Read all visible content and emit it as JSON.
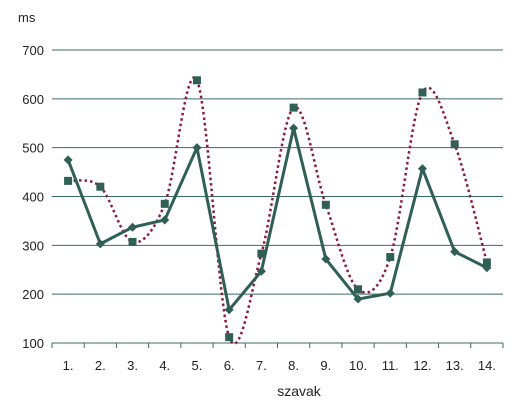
{
  "chart_data": {
    "type": "line",
    "ylabel": "ms",
    "xlabel": "szavak",
    "categories": [
      "1.",
      "2.",
      "3.",
      "4.",
      "5.",
      "6.",
      "7.",
      "8.",
      "9.",
      "10.",
      "11.",
      "12.",
      "13.",
      "14."
    ],
    "ylim": [
      100,
      700
    ],
    "yticks": [
      100,
      200,
      300,
      400,
      500,
      600,
      700
    ],
    "grid": true,
    "legend": "none",
    "series": [
      {
        "style": "solid line with diamond markers",
        "color": "#2f5f55",
        "values": [
          475,
          303,
          337,
          352,
          500,
          168,
          247,
          540,
          272,
          190,
          202,
          457,
          287,
          254
        ]
      },
      {
        "style": "dotted smooth line with square markers",
        "color": "#8b1a3a",
        "marker_color": "#2f5f55",
        "values": [
          432,
          420,
          307,
          385,
          638,
          112,
          283,
          582,
          383,
          210,
          276,
          613,
          507,
          265
        ]
      }
    ]
  }
}
